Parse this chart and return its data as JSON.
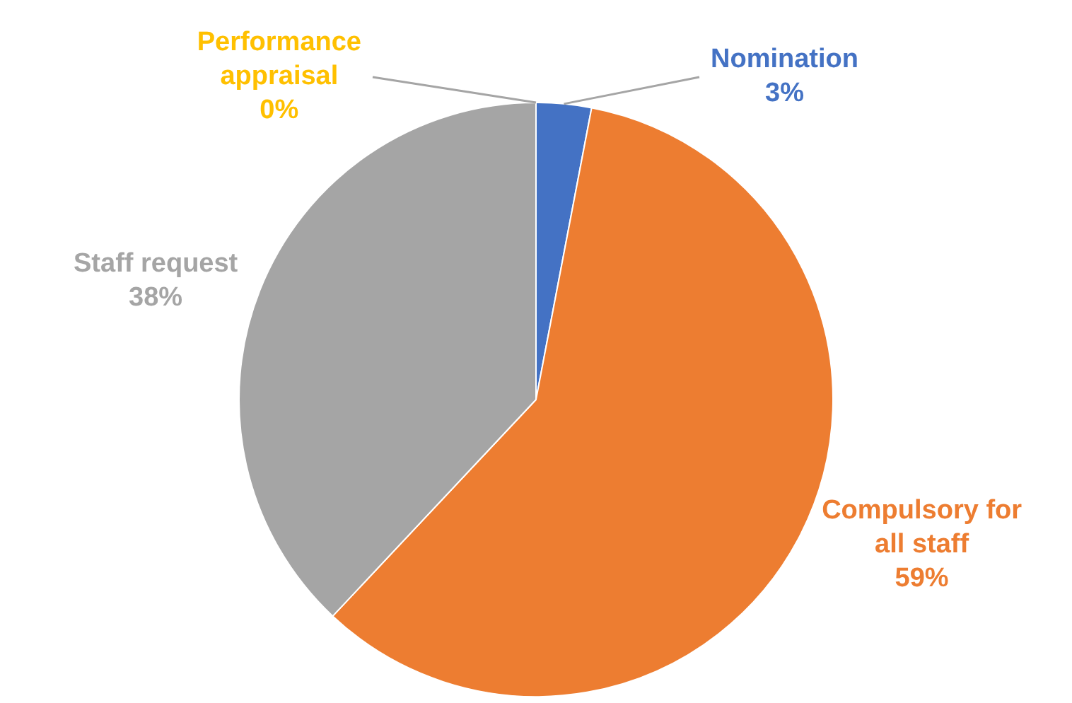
{
  "chart_data": {
    "type": "pie",
    "categories": [
      "Nomination",
      "Compulsory for all staff",
      "Staff request",
      "Performance appraisal"
    ],
    "values": [
      3,
      59,
      38,
      0
    ],
    "colors": [
      "#4472c4",
      "#ed7d31",
      "#a5a5a5",
      "#ffc000"
    ],
    "value_labels": [
      "3%",
      "59%",
      "38%",
      "0%"
    ],
    "legend": false
  }
}
